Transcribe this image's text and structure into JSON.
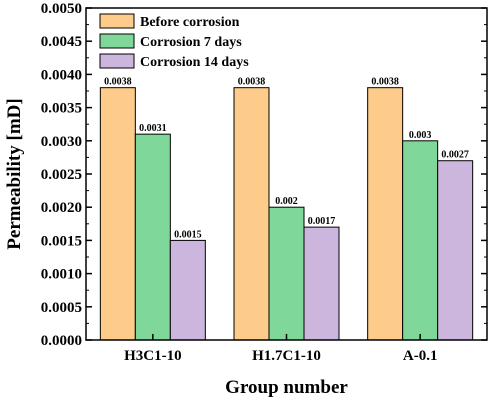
{
  "chart_data": {
    "type": "bar",
    "xlabel": "Group number",
    "ylabel": "Permeability [mD]",
    "categories": [
      "H3C1-10",
      "H1.7C1-10",
      "A-0.1"
    ],
    "ylim": [
      0,
      0.005
    ],
    "yticks": [
      "0.0000",
      "0.0005",
      "0.0010",
      "0.0015",
      "0.0020",
      "0.0025",
      "0.0030",
      "0.0035",
      "0.0040",
      "0.0045",
      "0.0050"
    ],
    "legend_position": "top-left",
    "grid": false,
    "series": [
      {
        "name": "Before corrosion",
        "color": "#fdcc8a",
        "values": [
          0.0038,
          0.0038,
          0.0038
        ],
        "labels": [
          "0.0038",
          "0.0038",
          "0.0038"
        ]
      },
      {
        "name": "Corrosion 7 days",
        "color": "#7fd79a",
        "values": [
          0.0031,
          0.002,
          0.003
        ],
        "labels": [
          "0.0031",
          "0.002",
          "0.003"
        ]
      },
      {
        "name": "Corrosion 14 days",
        "color": "#cdb6de",
        "values": [
          0.0015,
          0.0017,
          0.0027
        ],
        "labels": [
          "0.0015",
          "0.0017",
          "0.0027"
        ]
      }
    ]
  }
}
